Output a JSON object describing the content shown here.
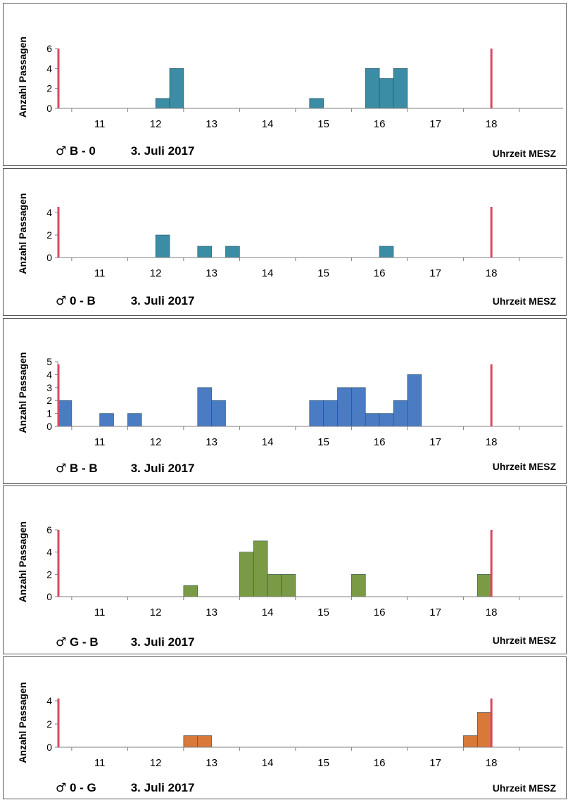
{
  "colors": {
    "marker": "#d9485f",
    "axis": "#7f7f7f"
  },
  "common": {
    "ylabel": "Anzahl  Passagen",
    "xunit": "Uhrzeit MESZ",
    "date": "3. Juli 2017",
    "male_symbol": "♂"
  },
  "chart_data": [
    {
      "type": "bar",
      "series": [
        {
          "name": "",
          "color": "#3a8da5"
        }
      ],
      "pair": "B - 0",
      "xlim": [
        10.25,
        19.5
      ],
      "ylim": [
        0,
        6
      ],
      "yticks": [
        0,
        2,
        4,
        6
      ],
      "xticks": [
        11,
        12,
        13,
        14,
        15,
        16,
        17,
        18
      ],
      "bars": [
        [
          12.0,
          1
        ],
        [
          12.25,
          4
        ],
        [
          14.75,
          1
        ],
        [
          15.75,
          4
        ],
        [
          16.0,
          3
        ],
        [
          16.25,
          4
        ]
      ],
      "bin_width": 0.25,
      "markers": [
        10.25,
        18.0
      ],
      "marker_top": 6
    },
    {
      "type": "bar",
      "series": [
        {
          "name": "",
          "color": "#3a8da5"
        }
      ],
      "pair": "0 - B",
      "xlim": [
        10.25,
        19.5
      ],
      "ylim": [
        0,
        4
      ],
      "yticks": [
        0,
        2,
        4
      ],
      "xticks": [
        11,
        12,
        13,
        14,
        15,
        16,
        17,
        18
      ],
      "bars": [
        [
          12.0,
          2
        ],
        [
          12.75,
          1
        ],
        [
          13.25,
          1
        ],
        [
          16.0,
          1
        ]
      ],
      "bin_width": 0.25,
      "markers": [
        10.25,
        18.0
      ],
      "marker_top": 4.5
    },
    {
      "type": "bar",
      "series": [
        {
          "name": "",
          "color": "#4a7cc4"
        }
      ],
      "pair": "B - B",
      "xlim": [
        10.25,
        19.5
      ],
      "ylim": [
        0,
        5
      ],
      "yticks": [
        0,
        1,
        2,
        3,
        4,
        5
      ],
      "xticks": [
        11,
        12,
        13,
        14,
        15,
        16,
        17,
        18
      ],
      "bars": [
        [
          10.25,
          2
        ],
        [
          11.0,
          1
        ],
        [
          11.5,
          1
        ],
        [
          12.75,
          3
        ],
        [
          13.0,
          2
        ],
        [
          14.75,
          2
        ],
        [
          15.0,
          2
        ],
        [
          15.25,
          3
        ],
        [
          15.5,
          3
        ],
        [
          15.75,
          1
        ],
        [
          16.0,
          1
        ],
        [
          16.25,
          2
        ],
        [
          16.5,
          4
        ]
      ],
      "bin_width": 0.25,
      "markers": [
        10.25,
        18.0
      ],
      "marker_top": 4.8
    },
    {
      "type": "bar",
      "series": [
        {
          "name": "",
          "color": "#7b9a45"
        }
      ],
      "pair": "G - B",
      "xlim": [
        10.25,
        19.5
      ],
      "ylim": [
        0,
        6
      ],
      "yticks": [
        0,
        2,
        4,
        6
      ],
      "xticks": [
        11,
        12,
        13,
        14,
        15,
        16,
        17,
        18
      ],
      "bars": [
        [
          12.5,
          1
        ],
        [
          13.5,
          4
        ],
        [
          13.75,
          5
        ],
        [
          14.0,
          2
        ],
        [
          14.25,
          2
        ],
        [
          15.5,
          2
        ],
        [
          17.75,
          2
        ]
      ],
      "bin_width": 0.25,
      "markers": [
        10.25,
        18.0
      ],
      "marker_top": 6
    },
    {
      "type": "bar",
      "series": [
        {
          "name": "",
          "color": "#d8793a"
        }
      ],
      "pair": "0 - G",
      "xlim": [
        10.25,
        19.5
      ],
      "ylim": [
        0,
        4
      ],
      "yticks": [
        0,
        2,
        4
      ],
      "xticks": [
        11,
        12,
        13,
        14,
        15,
        16,
        17,
        18
      ],
      "bars": [
        [
          12.5,
          1
        ],
        [
          12.75,
          1
        ],
        [
          17.5,
          1
        ],
        [
          17.75,
          3
        ]
      ],
      "bin_width": 0.25,
      "markers": [
        10.25,
        18.0
      ],
      "marker_top": 4.2
    }
  ]
}
